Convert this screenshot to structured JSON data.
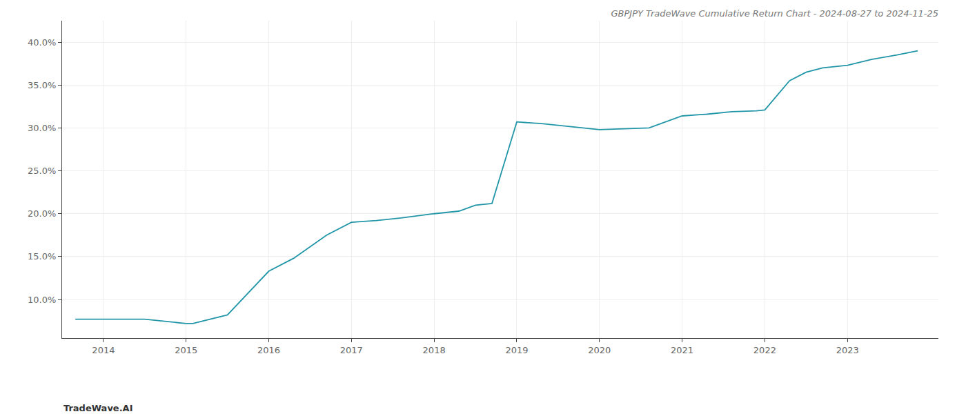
{
  "chart_data": {
    "type": "line",
    "title": "GBPJPY TradeWave Cumulative Return Chart - 2024-08-27 to 2024-11-25",
    "annotations": [
      "TradeWave.AI"
    ],
    "x": [
      2013.66,
      2014.0,
      2014.5,
      2015.0,
      2015.08,
      2015.5,
      2016.0,
      2016.3,
      2016.7,
      2017.0,
      2017.3,
      2017.6,
      2018.0,
      2018.3,
      2018.5,
      2018.7,
      2019.0,
      2019.3,
      2019.6,
      2020.0,
      2020.3,
      2020.6,
      2021.0,
      2021.3,
      2021.6,
      2021.9,
      2022.0,
      2022.3,
      2022.5,
      2022.7,
      2023.0,
      2023.3,
      2023.6,
      2023.85
    ],
    "values": [
      0.077,
      0.077,
      0.077,
      0.072,
      0.072,
      0.082,
      0.133,
      0.148,
      0.175,
      0.19,
      0.192,
      0.195,
      0.2,
      0.203,
      0.21,
      0.212,
      0.307,
      0.305,
      0.302,
      0.298,
      0.299,
      0.3,
      0.314,
      0.316,
      0.319,
      0.32,
      0.321,
      0.355,
      0.365,
      0.37,
      0.373,
      0.38,
      0.385,
      0.39
    ],
    "color": "#2196a8",
    "xlim": [
      2013.5,
      2024.1
    ],
    "xticks": [
      2014,
      2015,
      2016,
      2017,
      2018,
      2019,
      2020,
      2021,
      2022,
      2023
    ],
    "ylim": [
      0.055,
      0.425
    ],
    "yticks": [
      {
        "value": 0.1,
        "label": "10.0%"
      },
      {
        "value": 0.15,
        "label": "15.0%"
      },
      {
        "value": 0.2,
        "label": "20.0%"
      },
      {
        "value": 0.25,
        "label": "25.0%"
      },
      {
        "value": 0.3,
        "label": "30.0%"
      },
      {
        "value": 0.35,
        "label": "35.0%"
      },
      {
        "value": 0.4,
        "label": "40.0%"
      }
    ],
    "grid": true
  }
}
